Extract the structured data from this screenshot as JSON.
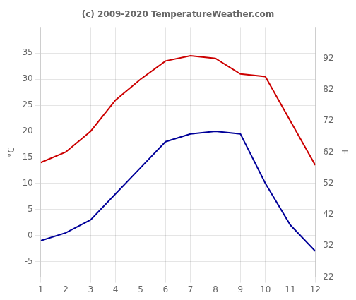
{
  "chart_data": {
    "type": "line",
    "title": "(c) 2009-2020 TemperatureWeather.com",
    "x": [
      1,
      2,
      3,
      4,
      5,
      6,
      7,
      8,
      9,
      10,
      11,
      12
    ],
    "series": [
      {
        "color": "#cc0000",
        "values": [
          14,
          16,
          20,
          26,
          30,
          33.5,
          34.5,
          34,
          31,
          30.5,
          22,
          13.5
        ]
      },
      {
        "color": "#000099",
        "values": [
          -1,
          0.5,
          3,
          8,
          13,
          18,
          19.5,
          20,
          19.5,
          10,
          2,
          -3
        ]
      }
    ],
    "xlim": [
      1,
      12
    ],
    "xticks": [
      1,
      2,
      3,
      4,
      5,
      6,
      7,
      8,
      9,
      10,
      11,
      12
    ],
    "ylim": [
      -8,
      40
    ],
    "yticks": [
      -5,
      0,
      5,
      10,
      15,
      20,
      25,
      30,
      35
    ],
    "y2lim": [
      22,
      102
    ],
    "y2ticks": [
      22,
      32,
      42,
      52,
      62,
      72,
      82,
      92
    ],
    "ylabel": "°C",
    "y2label": "F",
    "grid": true
  }
}
